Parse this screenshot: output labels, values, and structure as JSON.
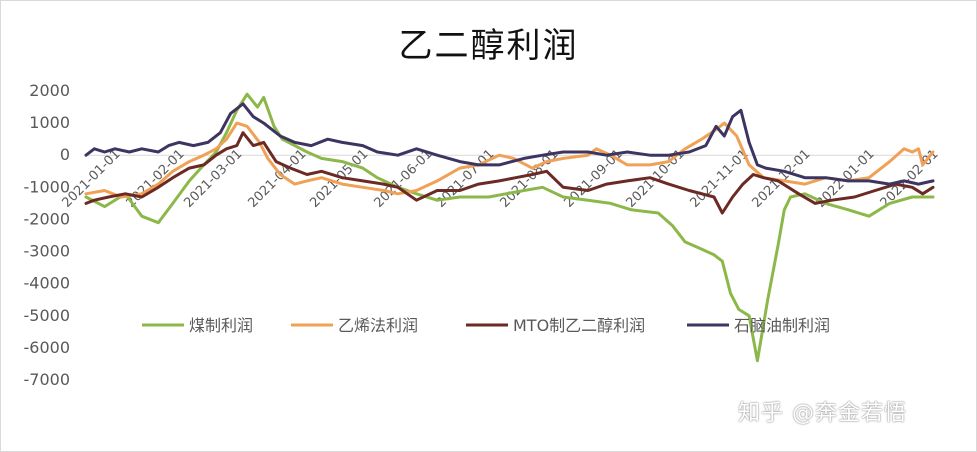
{
  "watermark": "知乎 @奔金若悟",
  "chart_data": {
    "type": "line",
    "title": "乙二醇利润",
    "xlabel": "",
    "ylabel": "",
    "ylim": [
      -7000,
      2000
    ],
    "yticks": [
      2000,
      1000,
      0,
      -1000,
      -2000,
      -3000,
      -4000,
      -5000,
      -6000,
      -7000
    ],
    "xlim": [
      "2021-01-01",
      "2022-02-15"
    ],
    "xtick_labels": [
      "2021-01-01",
      "2021-02-01",
      "2021-03-01",
      "2021-04-01",
      "2021-05-01",
      "2021-06-01",
      "2021-07-01",
      "2021-08-01",
      "2021-09-01",
      "2021-10-01",
      "2021-11-01",
      "2021-12-01",
      "2022-01-01",
      "2022-02-01"
    ],
    "grid": false,
    "legend_position": "inside-bottom",
    "series": [
      {
        "name": "煤制利润",
        "color": "#8cb84a",
        "points": [
          [
            "2021-01-01",
            -1300
          ],
          [
            "2021-01-10",
            -1600
          ],
          [
            "2021-01-20",
            -1200
          ],
          [
            "2021-01-28",
            -1900
          ],
          [
            "2021-02-05",
            -2100
          ],
          [
            "2021-02-12",
            -1500
          ],
          [
            "2021-02-20",
            -800
          ],
          [
            "2021-02-27",
            -300
          ],
          [
            "2021-03-05",
            100
          ],
          [
            "2021-03-10",
            700
          ],
          [
            "2021-03-15",
            1400
          ],
          [
            "2021-03-20",
            1900
          ],
          [
            "2021-03-25",
            1500
          ],
          [
            "2021-03-28",
            1800
          ],
          [
            "2021-04-02",
            900
          ],
          [
            "2021-04-06",
            500
          ],
          [
            "2021-04-12",
            300
          ],
          [
            "2021-04-18",
            100
          ],
          [
            "2021-04-25",
            -100
          ],
          [
            "2021-05-05",
            -200
          ],
          [
            "2021-05-15",
            -400
          ],
          [
            "2021-05-22",
            -700
          ],
          [
            "2021-06-01",
            -1000
          ],
          [
            "2021-06-10",
            -1200
          ],
          [
            "2021-06-20",
            -1400
          ],
          [
            "2021-07-01",
            -1300
          ],
          [
            "2021-07-15",
            -1300
          ],
          [
            "2021-08-01",
            -1100
          ],
          [
            "2021-08-10",
            -1000
          ],
          [
            "2021-08-20",
            -1300
          ],
          [
            "2021-09-01",
            -1400
          ],
          [
            "2021-09-12",
            -1500
          ],
          [
            "2021-09-22",
            -1700
          ],
          [
            "2021-10-05",
            -1800
          ],
          [
            "2021-10-12",
            -2200
          ],
          [
            "2021-10-18",
            -2700
          ],
          [
            "2021-10-25",
            -2900
          ],
          [
            "2021-11-01",
            -3100
          ],
          [
            "2021-11-05",
            -3300
          ],
          [
            "2021-11-09",
            -4300
          ],
          [
            "2021-11-13",
            -4800
          ],
          [
            "2021-11-18",
            -5000
          ],
          [
            "2021-11-22",
            -6400
          ],
          [
            "2021-11-27",
            -4500
          ],
          [
            "2021-12-02",
            -2800
          ],
          [
            "2021-12-05",
            -1700
          ],
          [
            "2021-12-08",
            -1300
          ],
          [
            "2021-12-15",
            -1200
          ],
          [
            "2021-12-25",
            -1500
          ],
          [
            "2022-01-05",
            -1700
          ],
          [
            "2022-01-15",
            -1900
          ],
          [
            "2022-01-25",
            -1500
          ],
          [
            "2022-02-05",
            -1300
          ],
          [
            "2022-02-15",
            -1300
          ]
        ]
      },
      {
        "name": "乙烯法利润",
        "color": "#f0a155",
        "points": [
          [
            "2021-01-01",
            -1200
          ],
          [
            "2021-01-10",
            -1100
          ],
          [
            "2021-01-18",
            -1300
          ],
          [
            "2021-01-28",
            -1200
          ],
          [
            "2021-02-05",
            -900
          ],
          [
            "2021-02-12",
            -500
          ],
          [
            "2021-02-20",
            -200
          ],
          [
            "2021-02-27",
            0
          ],
          [
            "2021-03-05",
            200
          ],
          [
            "2021-03-10",
            500
          ],
          [
            "2021-03-15",
            1000
          ],
          [
            "2021-03-20",
            900
          ],
          [
            "2021-03-26",
            400
          ],
          [
            "2021-03-30",
            -100
          ],
          [
            "2021-04-05",
            -600
          ],
          [
            "2021-04-12",
            -900
          ],
          [
            "2021-04-18",
            -800
          ],
          [
            "2021-04-25",
            -700
          ],
          [
            "2021-05-05",
            -900
          ],
          [
            "2021-05-15",
            -1000
          ],
          [
            "2021-05-25",
            -1100
          ],
          [
            "2021-06-01",
            -1200
          ],
          [
            "2021-06-10",
            -1100
          ],
          [
            "2021-06-20",
            -800
          ],
          [
            "2021-07-01",
            -400
          ],
          [
            "2021-07-10",
            -300
          ],
          [
            "2021-07-20",
            0
          ],
          [
            "2021-07-27",
            -100
          ],
          [
            "2021-08-05",
            -400
          ],
          [
            "2021-08-12",
            -200
          ],
          [
            "2021-08-20",
            -100
          ],
          [
            "2021-09-01",
            0
          ],
          [
            "2021-09-05",
            200
          ],
          [
            "2021-09-12",
            0
          ],
          [
            "2021-09-20",
            -300
          ],
          [
            "2021-10-01",
            -300
          ],
          [
            "2021-10-10",
            -200
          ],
          [
            "2021-10-18",
            200
          ],
          [
            "2021-10-26",
            500
          ],
          [
            "2021-11-02",
            800
          ],
          [
            "2021-11-06",
            1000
          ],
          [
            "2021-11-12",
            600
          ],
          [
            "2021-11-18",
            -300
          ],
          [
            "2021-11-25",
            -700
          ],
          [
            "2021-12-05",
            -800
          ],
          [
            "2021-12-15",
            -900
          ],
          [
            "2021-12-25",
            -700
          ],
          [
            "2022-01-05",
            -800
          ],
          [
            "2022-01-15",
            -700
          ],
          [
            "2022-01-25",
            -200
          ],
          [
            "2022-02-01",
            200
          ],
          [
            "2022-02-05",
            100
          ],
          [
            "2022-02-08",
            200
          ],
          [
            "2022-02-10",
            -300
          ],
          [
            "2022-02-15",
            100
          ]
        ]
      },
      {
        "name": "MTO制乙二醇利润",
        "color": "#6b2a24",
        "points": [
          [
            "2021-01-01",
            -1500
          ],
          [
            "2021-01-05",
            -1400
          ],
          [
            "2021-01-12",
            -1300
          ],
          [
            "2021-01-20",
            -1200
          ],
          [
            "2021-01-28",
            -1300
          ],
          [
            "2021-02-05",
            -1000
          ],
          [
            "2021-02-12",
            -700
          ],
          [
            "2021-02-20",
            -400
          ],
          [
            "2021-02-27",
            -300
          ],
          [
            "2021-03-05",
            0
          ],
          [
            "2021-03-10",
            200
          ],
          [
            "2021-03-15",
            300
          ],
          [
            "2021-03-18",
            700
          ],
          [
            "2021-03-23",
            300
          ],
          [
            "2021-03-28",
            400
          ],
          [
            "2021-04-03",
            -200
          ],
          [
            "2021-04-10",
            -400
          ],
          [
            "2021-04-18",
            -600
          ],
          [
            "2021-04-25",
            -500
          ],
          [
            "2021-05-05",
            -700
          ],
          [
            "2021-05-15",
            -800
          ],
          [
            "2021-05-25",
            -900
          ],
          [
            "2021-06-01",
            -1000
          ],
          [
            "2021-06-10",
            -1400
          ],
          [
            "2021-06-20",
            -1100
          ],
          [
            "2021-07-01",
            -1100
          ],
          [
            "2021-07-10",
            -900
          ],
          [
            "2021-07-20",
            -800
          ],
          [
            "2021-07-28",
            -700
          ],
          [
            "2021-08-05",
            -600
          ],
          [
            "2021-08-12",
            -500
          ],
          [
            "2021-08-20",
            -1000
          ],
          [
            "2021-09-01",
            -1100
          ],
          [
            "2021-09-10",
            -900
          ],
          [
            "2021-09-20",
            -800
          ],
          [
            "2021-10-01",
            -700
          ],
          [
            "2021-10-10",
            -900
          ],
          [
            "2021-10-20",
            -1100
          ],
          [
            "2021-11-01",
            -1300
          ],
          [
            "2021-11-05",
            -1800
          ],
          [
            "2021-11-10",
            -1300
          ],
          [
            "2021-11-15",
            -900
          ],
          [
            "2021-11-20",
            -600
          ],
          [
            "2021-11-25",
            -700
          ],
          [
            "2021-12-02",
            -800
          ],
          [
            "2021-12-12",
            -1200
          ],
          [
            "2021-12-20",
            -1500
          ],
          [
            "2021-12-28",
            -1400
          ],
          [
            "2022-01-08",
            -1300
          ],
          [
            "2022-01-18",
            -1100
          ],
          [
            "2022-01-28",
            -900
          ],
          [
            "2022-02-05",
            -1000
          ],
          [
            "2022-02-10",
            -1200
          ],
          [
            "2022-02-15",
            -1000
          ]
        ]
      },
      {
        "name": "石脑油制利润",
        "color": "#3e3461",
        "points": [
          [
            "2021-01-01",
            0
          ],
          [
            "2021-01-05",
            200
          ],
          [
            "2021-01-10",
            100
          ],
          [
            "2021-01-15",
            200
          ],
          [
            "2021-01-22",
            100
          ],
          [
            "2021-01-28",
            200
          ],
          [
            "2021-02-05",
            100
          ],
          [
            "2021-02-10",
            300
          ],
          [
            "2021-02-15",
            400
          ],
          [
            "2021-02-22",
            300
          ],
          [
            "2021-03-01",
            400
          ],
          [
            "2021-03-07",
            700
          ],
          [
            "2021-03-12",
            1300
          ],
          [
            "2021-03-18",
            1600
          ],
          [
            "2021-03-23",
            1200
          ],
          [
            "2021-03-28",
            1000
          ],
          [
            "2021-04-05",
            600
          ],
          [
            "2021-04-12",
            400
          ],
          [
            "2021-04-20",
            300
          ],
          [
            "2021-04-28",
            500
          ],
          [
            "2021-05-05",
            400
          ],
          [
            "2021-05-15",
            300
          ],
          [
            "2021-05-22",
            100
          ],
          [
            "2021-06-01",
            0
          ],
          [
            "2021-06-10",
            200
          ],
          [
            "2021-06-20",
            0
          ],
          [
            "2021-07-01",
            -200
          ],
          [
            "2021-07-10",
            -300
          ],
          [
            "2021-07-20",
            -300
          ],
          [
            "2021-08-01",
            -100
          ],
          [
            "2021-08-10",
            0
          ],
          [
            "2021-08-20",
            100
          ],
          [
            "2021-09-01",
            100
          ],
          [
            "2021-09-10",
            0
          ],
          [
            "2021-09-20",
            100
          ],
          [
            "2021-10-01",
            0
          ],
          [
            "2021-10-10",
            0
          ],
          [
            "2021-10-20",
            100
          ],
          [
            "2021-10-28",
            300
          ],
          [
            "2021-11-02",
            900
          ],
          [
            "2021-11-06",
            600
          ],
          [
            "2021-11-10",
            1200
          ],
          [
            "2021-11-14",
            1400
          ],
          [
            "2021-11-18",
            400
          ],
          [
            "2021-11-22",
            -300
          ],
          [
            "2021-11-26",
            -400
          ],
          [
            "2021-12-05",
            -500
          ],
          [
            "2021-12-15",
            -700
          ],
          [
            "2021-12-25",
            -700
          ],
          [
            "2022-01-05",
            -800
          ],
          [
            "2022-01-15",
            -800
          ],
          [
            "2022-01-25",
            -900
          ],
          [
            "2022-02-01",
            -800
          ],
          [
            "2022-02-08",
            -900
          ],
          [
            "2022-02-15",
            -800
          ]
        ]
      }
    ]
  }
}
